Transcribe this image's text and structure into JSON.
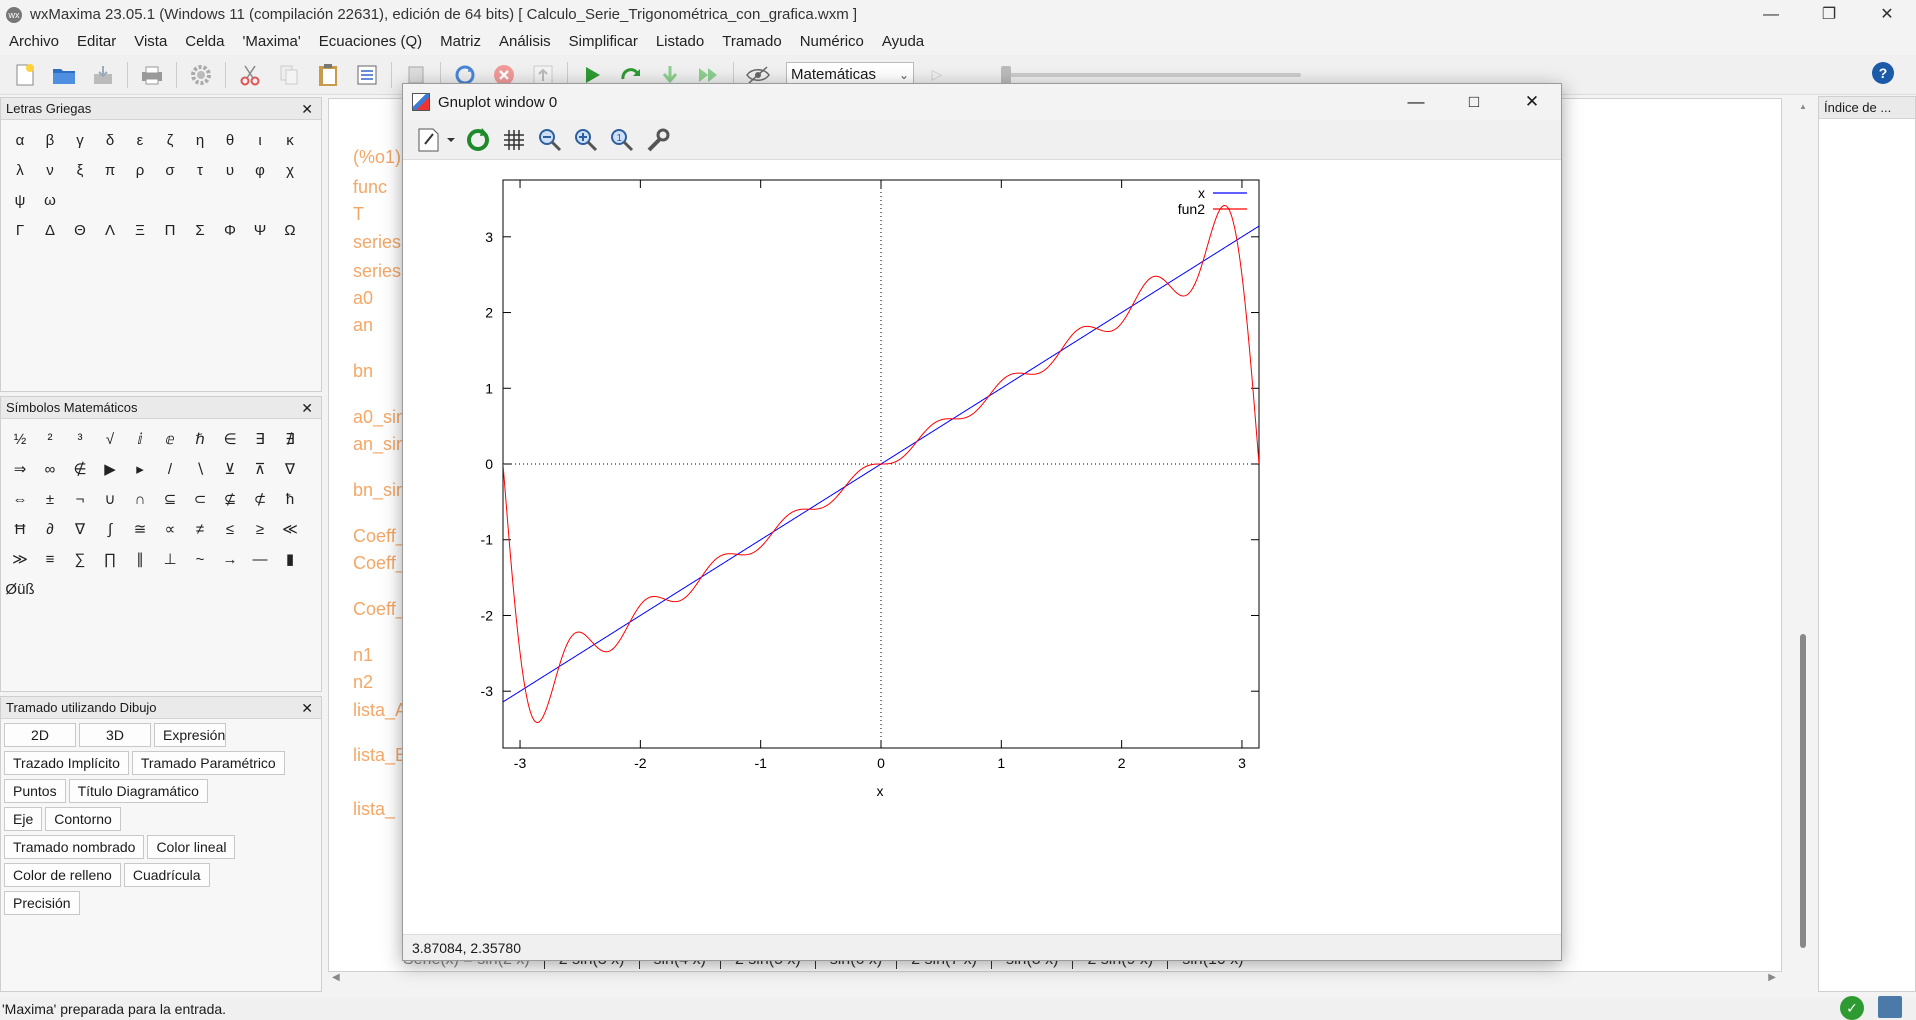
{
  "window": {
    "title": "wxMaxima 23.05.1 (Windows 11 (compilación 22631), edición de 64 bits)  [ Calculo_Serie_Trigonométrica_con_grafica.wxm ]",
    "app_icon_text": "wx"
  },
  "menu": [
    "Archivo",
    "Editar",
    "Vista",
    "Celda",
    "'Maxima'",
    "Ecuaciones (Q)",
    "Matriz",
    "Análisis",
    "Simplificar",
    "Listado",
    "Tramado",
    "Numérico",
    "Ayuda"
  ],
  "toolbar": {
    "mode_select_value": "Matemáticas"
  },
  "panels": {
    "greek": {
      "title": "Letras Griegas",
      "symbols": [
        "α",
        "β",
        "γ",
        "δ",
        "ε",
        "ζ",
        "η",
        "θ",
        "ι",
        "κ",
        "λ",
        "ν",
        "ξ",
        "π",
        "ρ",
        "σ",
        "τ",
        "υ",
        "φ",
        "χ",
        "ψ",
        "ω",
        "Γ",
        "Δ",
        "Θ",
        "Λ",
        "Ξ",
        "Π",
        "Σ",
        "Φ",
        "Ψ",
        "Ω"
      ]
    },
    "math": {
      "title": "Símbolos Matemáticos",
      "symbols": [
        "½",
        "²",
        "³",
        "√",
        "ⅈ",
        "ⅇ",
        "ℏ",
        "∈",
        "∃",
        "∄",
        "⇒",
        "∞",
        "∉",
        "▶",
        "▸",
        "/",
        "∖",
        "⊻",
        "⊼",
        "∇",
        "⇔",
        "±",
        "¬",
        "∪",
        "∩",
        "⊆",
        "⊂",
        "⊈",
        "⊄",
        "ħ",
        "Ħ",
        "∂",
        "∇",
        "∫",
        "≅",
        "∝",
        "≠",
        "≤",
        "≥",
        "≪",
        "≫",
        "≡",
        "∑",
        "∏",
        "∥",
        "⊥",
        "~",
        "→",
        "—",
        "▮",
        "Øüß"
      ]
    },
    "plot": {
      "title": "Tramado utilizando Dibujo",
      "rows": [
        [
          "2D",
          "3D",
          "Expresión"
        ],
        [
          "Trazado Implícito",
          "Tramado Paramétrico"
        ],
        [
          "Puntos",
          "Título Diagramático"
        ],
        [
          "Eje",
          "Contorno"
        ],
        [
          "Tramado nombrado",
          "Color lineal"
        ],
        [
          "Color de relleno",
          "Cuadrícula"
        ],
        [
          "Precisión"
        ]
      ]
    },
    "index": {
      "title": "Índice de ..."
    }
  },
  "worksheet": {
    "lines": [
      "(%o1)",
      "func",
      "T",
      "series",
      "series",
      "a0",
      "an",
      "bn",
      "a0_sin",
      "an_sin",
      "bn_sin",
      "Coeff_",
      "Coeff_",
      "Coeff_",
      "n1",
      "n2",
      "lista_A",
      "lista_B",
      "lista_"
    ],
    "bottom_terms": [
      "2 sin(3 x)",
      "sin(4 x)",
      "2 sin(5 x)",
      "sin(6 x)",
      "2 sin(7 x)",
      "sin(8 x)",
      "2 sin(9 x)",
      "sin(10 x)"
    ],
    "bottom_prefix": "Serie(x) = sin(2 x)"
  },
  "status": {
    "text": "'Maxima' preparada para la entrada."
  },
  "gnuplot": {
    "title": "Gnuplot window 0",
    "status_coords": "3.87084,  2.35780",
    "chart_data": {
      "type": "line",
      "xlabel": "x",
      "ylabel": "",
      "xlim": [
        -3.1416,
        3.1416
      ],
      "ylim": [
        -3.75,
        3.75
      ],
      "xticks": [
        -3,
        -2,
        -1,
        0,
        1,
        2,
        3
      ],
      "yticks": [
        -3,
        -2,
        -1,
        0,
        1,
        2,
        3
      ],
      "zero_axes": "dotted",
      "legend_position": "top-right",
      "series": [
        {
          "name": "x",
          "color": "#0000ff",
          "function": "x"
        },
        {
          "name": "fun2",
          "color": "#ff0000",
          "function": "2*sum((-1)^(n+1)*sin(n*x)/n, n, 1, 10)"
        }
      ]
    }
  }
}
